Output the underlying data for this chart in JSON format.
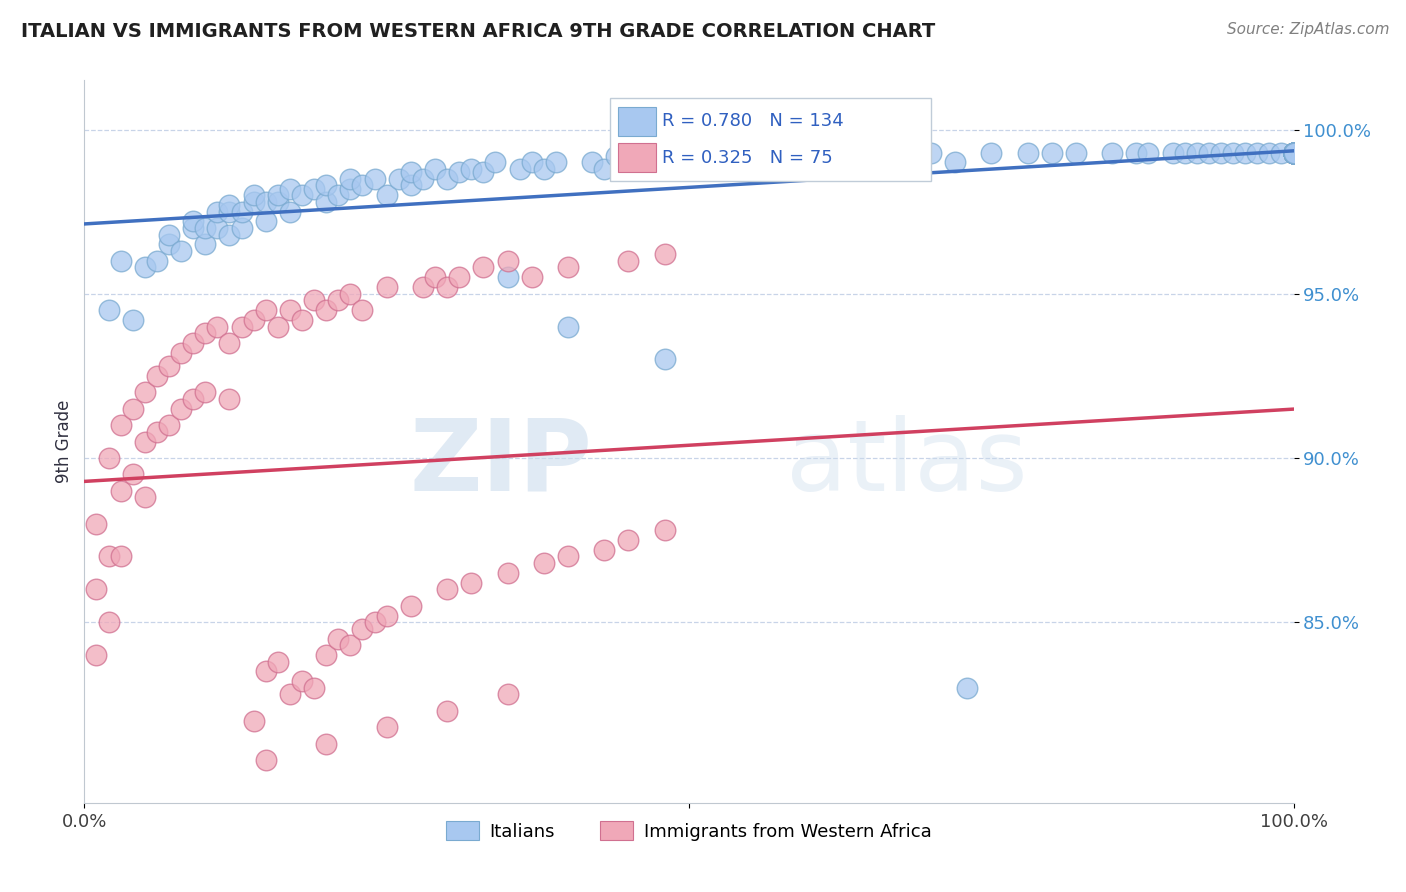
{
  "title": "ITALIAN VS IMMIGRANTS FROM WESTERN AFRICA 9TH GRADE CORRELATION CHART",
  "source": "Source: ZipAtlas.com",
  "ylabel": "9th Grade",
  "watermark_zip": "ZIP",
  "watermark_atlas": "atlas",
  "legend": {
    "blue_label": "Italians",
    "pink_label": "Immigrants from Western Africa",
    "blue_R": 0.78,
    "blue_N": 134,
    "pink_R": 0.325,
    "pink_N": 75
  },
  "y_ticks": [
    0.85,
    0.9,
    0.95,
    1.0
  ],
  "y_tick_labels": [
    "85.0%",
    "90.0%",
    "95.0%",
    "100.0%"
  ],
  "ylim": [
    0.795,
    1.015
  ],
  "xlim": [
    0.0,
    1.0
  ],
  "blue_color": "#a8c8f0",
  "blue_edge_color": "#7aaad0",
  "pink_color": "#f0a8b8",
  "pink_edge_color": "#d07090",
  "blue_line_color": "#4070c0",
  "pink_line_color": "#d04060",
  "background_color": "#ffffff",
  "grid_color": "#c8d4e8",
  "title_color": "#202020",
  "source_color": "#808080",
  "legend_R_color": "#3060c0",
  "ytick_color": "#4090d0",
  "blue_points_x": [
    0.02,
    0.03,
    0.04,
    0.05,
    0.06,
    0.07,
    0.07,
    0.08,
    0.09,
    0.09,
    0.1,
    0.1,
    0.11,
    0.11,
    0.12,
    0.12,
    0.12,
    0.13,
    0.13,
    0.14,
    0.14,
    0.15,
    0.15,
    0.16,
    0.16,
    0.17,
    0.17,
    0.18,
    0.19,
    0.2,
    0.2,
    0.21,
    0.22,
    0.22,
    0.23,
    0.24,
    0.25,
    0.26,
    0.27,
    0.27,
    0.28,
    0.29,
    0.3,
    0.31,
    0.32,
    0.33,
    0.34,
    0.35,
    0.36,
    0.37,
    0.38,
    0.39,
    0.4,
    0.42,
    0.43,
    0.44,
    0.45,
    0.46,
    0.47,
    0.48,
    0.5,
    0.51,
    0.52,
    0.53,
    0.55,
    0.56,
    0.57,
    0.58,
    0.59,
    0.6,
    0.61,
    0.62,
    0.64,
    0.65,
    0.66,
    0.67,
    0.68,
    0.7,
    0.72,
    0.73,
    0.75,
    0.78,
    0.8,
    0.82,
    0.85,
    0.87,
    0.88,
    0.9,
    0.91,
    0.92,
    0.93,
    0.94,
    0.95,
    0.96,
    0.97,
    0.98,
    0.99,
    1.0,
    1.0,
    1.0,
    1.0,
    1.0,
    1.0,
    1.0,
    1.0,
    1.0,
    1.0,
    1.0,
    1.0,
    1.0,
    1.0,
    1.0,
    1.0,
    1.0,
    1.0,
    1.0,
    1.0,
    1.0,
    1.0,
    1.0,
    1.0,
    1.0,
    1.0,
    1.0,
    1.0,
    1.0,
    1.0,
    1.0,
    1.0,
    1.0,
    1.0,
    1.0,
    1.0,
    1.0
  ],
  "blue_points_y": [
    0.945,
    0.96,
    0.942,
    0.958,
    0.96,
    0.965,
    0.968,
    0.963,
    0.97,
    0.972,
    0.965,
    0.97,
    0.97,
    0.975,
    0.968,
    0.975,
    0.977,
    0.97,
    0.975,
    0.978,
    0.98,
    0.972,
    0.978,
    0.978,
    0.98,
    0.975,
    0.982,
    0.98,
    0.982,
    0.978,
    0.983,
    0.98,
    0.982,
    0.985,
    0.983,
    0.985,
    0.98,
    0.985,
    0.983,
    0.987,
    0.985,
    0.988,
    0.985,
    0.987,
    0.988,
    0.987,
    0.99,
    0.955,
    0.988,
    0.99,
    0.988,
    0.99,
    0.94,
    0.99,
    0.988,
    0.992,
    0.99,
    0.988,
    0.992,
    0.93,
    0.99,
    0.992,
    0.993,
    0.99,
    0.992,
    0.993,
    0.992,
    0.993,
    0.993,
    0.992,
    0.993,
    0.993,
    0.993,
    0.993,
    0.993,
    0.992,
    0.993,
    0.993,
    0.99,
    0.83,
    0.993,
    0.993,
    0.993,
    0.993,
    0.993,
    0.993,
    0.993,
    0.993,
    0.993,
    0.993,
    0.993,
    0.993,
    0.993,
    0.993,
    0.993,
    0.993,
    0.993,
    0.993,
    0.993,
    0.993,
    0.993,
    0.993,
    0.993,
    0.993,
    0.993,
    0.993,
    0.993,
    0.993,
    0.993,
    0.993,
    0.993,
    0.993,
    0.993,
    0.993,
    0.993,
    0.993,
    0.993,
    0.993,
    0.993,
    0.993,
    0.993,
    0.993,
    0.993,
    0.993,
    0.993,
    0.993,
    0.993,
    0.993,
    0.993,
    0.993,
    0.993,
    0.993,
    0.993,
    0.993
  ],
  "pink_points_x": [
    0.01,
    0.01,
    0.01,
    0.02,
    0.02,
    0.02,
    0.03,
    0.03,
    0.03,
    0.04,
    0.04,
    0.05,
    0.05,
    0.05,
    0.06,
    0.06,
    0.07,
    0.07,
    0.08,
    0.08,
    0.09,
    0.09,
    0.1,
    0.1,
    0.11,
    0.12,
    0.12,
    0.13,
    0.14,
    0.15,
    0.16,
    0.17,
    0.18,
    0.19,
    0.2,
    0.21,
    0.22,
    0.23,
    0.25,
    0.28,
    0.29,
    0.3,
    0.31,
    0.33,
    0.35,
    0.37,
    0.4,
    0.45,
    0.48,
    0.14,
    0.15,
    0.16,
    0.17,
    0.18,
    0.19,
    0.2,
    0.21,
    0.22,
    0.23,
    0.24,
    0.25,
    0.27,
    0.3,
    0.32,
    0.35,
    0.38,
    0.4,
    0.43,
    0.45,
    0.48,
    0.15,
    0.2,
    0.25,
    0.3,
    0.35
  ],
  "pink_points_y": [
    0.88,
    0.86,
    0.84,
    0.9,
    0.87,
    0.85,
    0.91,
    0.89,
    0.87,
    0.915,
    0.895,
    0.92,
    0.905,
    0.888,
    0.925,
    0.908,
    0.928,
    0.91,
    0.932,
    0.915,
    0.935,
    0.918,
    0.938,
    0.92,
    0.94,
    0.935,
    0.918,
    0.94,
    0.942,
    0.945,
    0.94,
    0.945,
    0.942,
    0.948,
    0.945,
    0.948,
    0.95,
    0.945,
    0.952,
    0.952,
    0.955,
    0.952,
    0.955,
    0.958,
    0.96,
    0.955,
    0.958,
    0.96,
    0.962,
    0.82,
    0.835,
    0.838,
    0.828,
    0.832,
    0.83,
    0.84,
    0.845,
    0.843,
    0.848,
    0.85,
    0.852,
    0.855,
    0.86,
    0.862,
    0.865,
    0.868,
    0.87,
    0.872,
    0.875,
    0.878,
    0.808,
    0.813,
    0.818,
    0.823,
    0.828
  ]
}
